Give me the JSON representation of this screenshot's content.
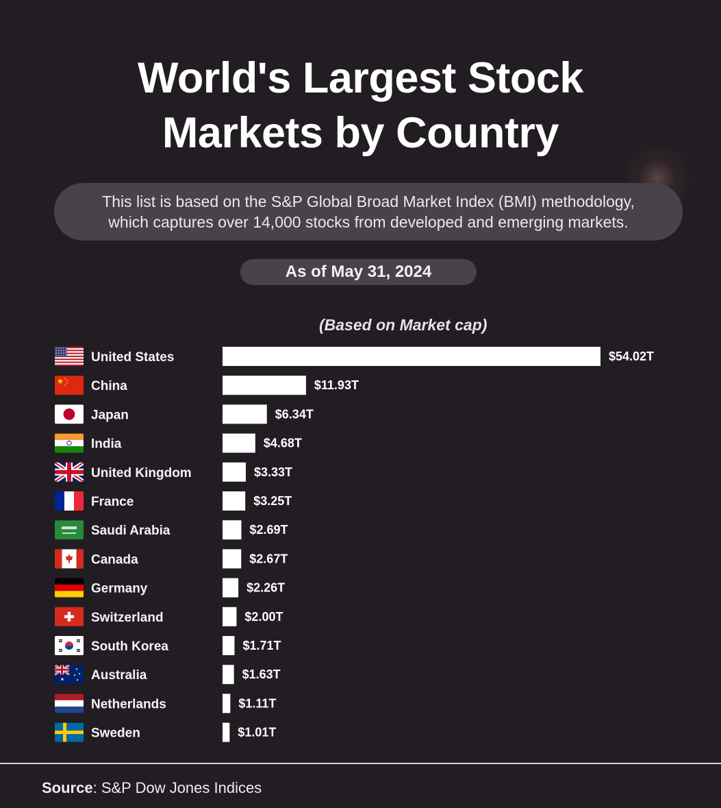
{
  "title_line1": "World's Largest Stock",
  "title_line2": "Markets by Country",
  "subtitle_line1": "This list is based on the S&P Global Broad Market Index (BMI) methodology,",
  "subtitle_line2": "which captures over 14,000 stocks from developed and emerging markets.",
  "date_label": "As of May 31, 2024",
  "basis_label": "(Based on Market cap)",
  "source_label": "Source",
  "source_sep": ":",
  "source_text": " S&P Dow Jones Indices",
  "colors": {
    "background": "#221d22",
    "bar": "#ffffff",
    "pill": "#48424a"
  },
  "chart_data": {
    "type": "bar",
    "orientation": "horizontal",
    "categories": [
      "United States",
      "China",
      "Japan",
      "India",
      "United Kingdom",
      "France",
      "Saudi Arabia",
      "Canada",
      "Germany",
      "Switzerland",
      "South Korea",
      "Australia",
      "Netherlands",
      "Sweden"
    ],
    "values": [
      54.02,
      11.93,
      6.34,
      4.68,
      3.33,
      3.25,
      2.69,
      2.67,
      2.26,
      2.0,
      1.71,
      1.63,
      1.11,
      1.01
    ],
    "value_labels": [
      "$54.02T",
      "$11.93T",
      "$6.34T",
      "$4.68T",
      "$3.33T",
      "$3.25T",
      "$2.69T",
      "$2.67T",
      "$2.26T",
      "$2.00T",
      "$1.71T",
      "$1.63T",
      "$1.11T",
      "$1.01T"
    ],
    "flags": [
      "flag-united-states-icon",
      "flag-china-icon",
      "flag-japan-icon",
      "flag-india-icon",
      "flag-united-kingdom-icon",
      "flag-france-icon",
      "flag-saudi-arabia-icon",
      "flag-canada-icon",
      "flag-germany-icon",
      "flag-switzerland-icon",
      "flag-south-korea-icon",
      "flag-australia-icon",
      "flag-netherlands-icon",
      "flag-sweden-icon"
    ],
    "xlim": [
      0,
      54.02
    ],
    "grid": false,
    "legend": false
  }
}
